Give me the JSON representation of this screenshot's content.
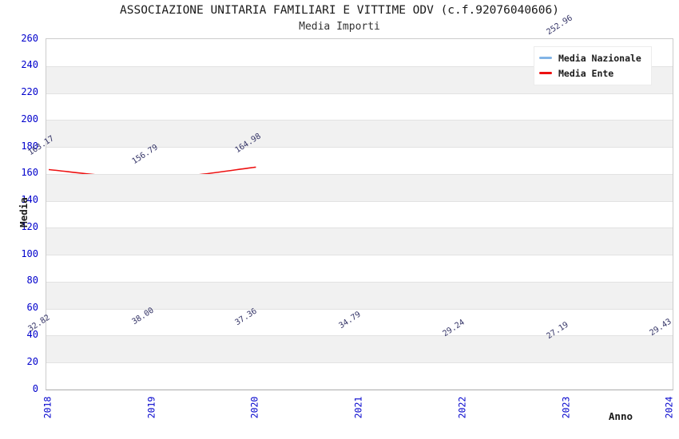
{
  "header": {
    "title": "ASSOCIAZIONE UNITARIA FAMILIARI E VITTIME ODV (c.f.92076040606)",
    "subtitle": "Media Importi"
  },
  "chart_data": {
    "type": "line",
    "x": [
      2018,
      2019,
      2020,
      2021,
      2022,
      2023,
      2024
    ],
    "series": [
      {
        "name": "Media Nazionale",
        "color": "#82b4e6",
        "stroke_width": 2,
        "values": [
          32.82,
          38.0,
          37.36,
          34.79,
          29.24,
          27.19,
          29.43
        ]
      },
      {
        "name": "Media Ente",
        "color": "#ed1111",
        "stroke_width": 1.6,
        "values": [
          163.17,
          156.79,
          164.98,
          null,
          null,
          252.96,
          null
        ]
      }
    ],
    "xlabel": "Anno",
    "ylabel": "Media",
    "ylim": [
      0,
      260
    ],
    "ytick_step": 20,
    "yticks": [
      0,
      20,
      40,
      60,
      80,
      100,
      120,
      140,
      160,
      180,
      200,
      220,
      240,
      260
    ],
    "legend_position": "top-right",
    "grid": "horizontal-bands",
    "band_color": "#f1f1f1",
    "gridline_color": "#e2e2e2",
    "tick_color": "#0000cc",
    "data_label_color": "#333366",
    "data_label_format": "2-decimals"
  }
}
